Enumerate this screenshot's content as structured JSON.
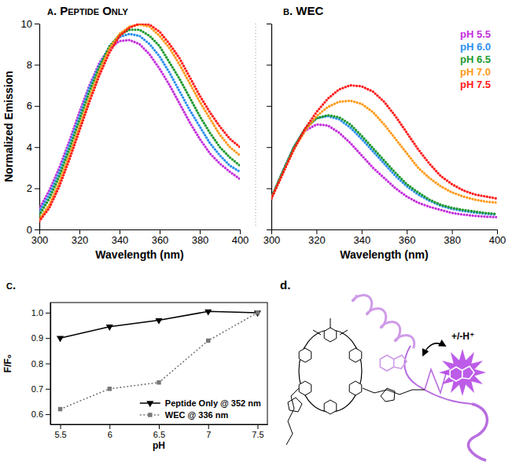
{
  "chart_data": [
    {
      "type": "line",
      "title": "a. Peptide Only",
      "xlabel": "Wavelength (nm)",
      "ylabel": "Normalized Emission",
      "x": [
        300,
        305,
        310,
        315,
        320,
        325,
        330,
        335,
        340,
        345,
        350,
        355,
        360,
        365,
        370,
        375,
        380,
        385,
        390,
        395,
        400
      ],
      "xlim": [
        300,
        400
      ],
      "xticks": [
        300,
        320,
        340,
        360,
        380,
        400
      ],
      "ylim": [
        0,
        10
      ],
      "yticks": [
        0,
        2,
        4,
        6,
        8,
        10
      ],
      "line_style": "dotted",
      "series": [
        {
          "color": "#c42fdc",
          "values": [
            1.0,
            1.9,
            3.0,
            4.3,
            5.7,
            7.0,
            8.1,
            8.8,
            9.15,
            9.2,
            9.0,
            8.5,
            7.8,
            7.0,
            6.1,
            5.2,
            4.4,
            3.7,
            3.2,
            2.8,
            2.45
          ]
        },
        {
          "color": "#2b8ff0",
          "values": [
            0.85,
            1.7,
            2.8,
            4.1,
            5.5,
            6.9,
            8.0,
            8.9,
            9.35,
            9.5,
            9.4,
            9.0,
            8.4,
            7.6,
            6.7,
            5.8,
            5.0,
            4.2,
            3.6,
            3.1,
            2.8
          ]
        },
        {
          "color": "#1e9a2e",
          "values": [
            0.7,
            1.5,
            2.6,
            3.9,
            5.3,
            6.7,
            7.9,
            8.9,
            9.45,
            9.7,
            9.7,
            9.4,
            8.9,
            8.1,
            7.3,
            6.4,
            5.5,
            4.7,
            4.0,
            3.5,
            3.1
          ]
        },
        {
          "color": "#ff9a1a",
          "values": [
            0.5,
            1.2,
            2.3,
            3.6,
            5.0,
            6.4,
            7.7,
            8.8,
            9.5,
            9.85,
            9.95,
            9.85,
            9.4,
            8.8,
            8.0,
            7.1,
            6.2,
            5.4,
            4.6,
            4.0,
            3.6
          ]
        },
        {
          "color": "#ff1a1a",
          "values": [
            0.4,
            1.05,
            2.1,
            3.4,
            4.8,
            6.2,
            7.5,
            8.6,
            9.4,
            9.8,
            10.0,
            9.95,
            9.6,
            9.0,
            8.3,
            7.4,
            6.5,
            5.7,
            5.0,
            4.4,
            4.0
          ]
        }
      ]
    },
    {
      "type": "line",
      "title": "b. WEC",
      "xlabel": "Wavelength (nm)",
      "x": [
        300,
        305,
        310,
        315,
        320,
        325,
        330,
        335,
        340,
        345,
        350,
        355,
        360,
        365,
        370,
        375,
        380,
        385,
        390,
        395,
        400
      ],
      "xlim": [
        300,
        400
      ],
      "xticks": [
        300,
        320,
        340,
        360,
        380,
        400
      ],
      "ylim": [
        0,
        10
      ],
      "yticks": [
        0,
        2,
        4,
        6,
        8,
        10
      ],
      "tick_labels": "x",
      "legend": "upper right",
      "line_style": "dotted",
      "series": [
        {
          "name": "pH 5.5",
          "color": "#c42fdc",
          "values": [
            1.5,
            2.8,
            4.0,
            4.8,
            5.1,
            5.05,
            4.7,
            4.2,
            3.6,
            3.0,
            2.5,
            2.0,
            1.6,
            1.3,
            1.1,
            0.95,
            0.8,
            0.72,
            0.66,
            0.62,
            0.6
          ]
        },
        {
          "name": "pH 6.0",
          "color": "#2b8ff0",
          "values": [
            1.5,
            2.8,
            4.0,
            4.9,
            5.4,
            5.5,
            5.35,
            4.95,
            4.4,
            3.8,
            3.2,
            2.6,
            2.1,
            1.7,
            1.4,
            1.15,
            1.0,
            0.9,
            0.82,
            0.76,
            0.72
          ]
        },
        {
          "name": "pH 6.5",
          "color": "#1e9a2e",
          "values": [
            1.55,
            2.8,
            4.0,
            4.9,
            5.4,
            5.55,
            5.45,
            5.1,
            4.55,
            3.95,
            3.35,
            2.75,
            2.2,
            1.8,
            1.45,
            1.2,
            1.05,
            0.95,
            0.87,
            0.8,
            0.75
          ]
        },
        {
          "name": "pH 7.0",
          "color": "#ff9a1a",
          "values": [
            1.5,
            2.7,
            3.9,
            4.8,
            5.5,
            5.95,
            6.2,
            6.25,
            6.1,
            5.7,
            5.1,
            4.4,
            3.7,
            3.0,
            2.5,
            2.1,
            1.8,
            1.6,
            1.45,
            1.35,
            1.3
          ]
        },
        {
          "name": "pH 7.5",
          "color": "#ff1a1a",
          "values": [
            1.5,
            2.7,
            3.9,
            4.9,
            5.7,
            6.35,
            6.8,
            7.0,
            6.95,
            6.7,
            6.2,
            5.5,
            4.7,
            3.9,
            3.2,
            2.6,
            2.2,
            1.9,
            1.7,
            1.6,
            1.5
          ]
        }
      ]
    },
    {
      "type": "line",
      "title": "c.",
      "xlabel": "pH",
      "ylabel": "F/F₀",
      "x": [
        5.5,
        6,
        6.5,
        7,
        7.5
      ],
      "xlim": [
        5.4,
        7.6
      ],
      "xticks": [
        5.5,
        6,
        6.5,
        7,
        7.5
      ],
      "ylim": [
        0.56,
        1.04
      ],
      "yticks": [
        0.6,
        0.7,
        0.8,
        0.9,
        {
          "value": 1,
          "label": "1.0"
        }
      ],
      "legend": "lower right",
      "series": [
        {
          "name": "Peptide Only @ 352 nm",
          "color": "#000000",
          "marker": "triangle-down",
          "line_style": "solid",
          "values": [
            0.9,
            0.945,
            0.97,
            1.005,
            1.0
          ]
        },
        {
          "name": "WEC @ 336 nm",
          "color": "#777777",
          "marker": "square",
          "line_style": "dotted",
          "values": [
            0.62,
            0.7,
            0.725,
            0.89,
            1.0
          ]
        }
      ]
    }
  ],
  "diagram": {
    "label": "d.",
    "annotation": "+/-H⁺"
  }
}
